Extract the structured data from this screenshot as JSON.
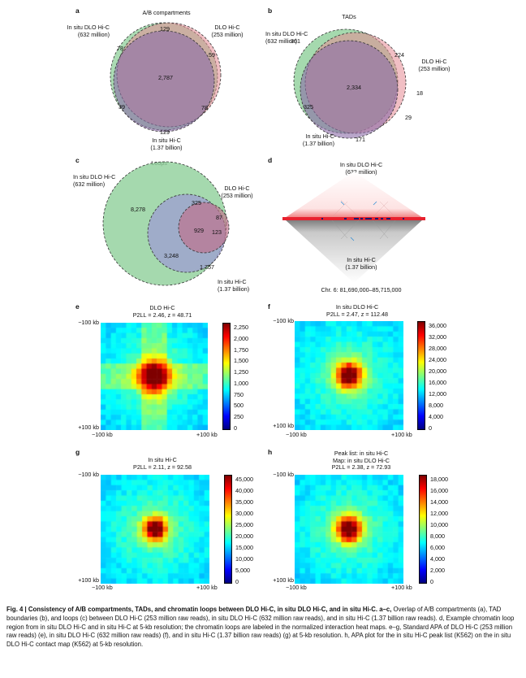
{
  "panels": {
    "a": {
      "letter": "a",
      "title": "A/B compartments",
      "set_left": [
        "In situ DLO Hi-C",
        "(632 million)"
      ],
      "set_right": [
        "DLO Hi-C",
        "(253 million)"
      ],
      "set_bottom": [
        "In situ Hi-C",
        "(1.37 billion)"
      ],
      "counts": {
        "top": "129",
        "left": "78",
        "right": "59",
        "center": "2,787",
        "lower_left": "39",
        "lower_right": "78",
        "bottom": "129"
      }
    },
    "b": {
      "letter": "b",
      "title": "TADs",
      "set_left": [
        "In situ DLO Hi-C",
        "(632 million)"
      ],
      "set_right": [
        "DLO Hi-C",
        "(253 million)"
      ],
      "set_bottom": [
        "In situ Hi-C",
        "(1.37 billion)"
      ],
      "counts": {
        "left": "361",
        "upper_right": "224",
        "center": "2,334",
        "right": "18",
        "lower_left": "325",
        "lower_right": "29",
        "bottom": "171"
      }
    },
    "c": {
      "letter": "c",
      "title": "Loops",
      "set_left": [
        "In situ DLO Hi-C",
        "(632 million)"
      ],
      "set_right": [
        "DLO Hi-C",
        "(253 million)"
      ],
      "set_bottom": [
        "In situ Hi-C",
        "(1.37 billion)"
      ],
      "counts": {
        "left": "8,278",
        "top_right": "325",
        "tiny": "87",
        "center": "929",
        "right": "123",
        "lower_center": "3,248",
        "lower_right": "1,757"
      }
    },
    "d": {
      "letter": "d",
      "top_label": [
        "In situ DLO Hi-C",
        "(632 million)"
      ],
      "bottom_label": [
        "In situ Hi-C",
        "(1.37 billion)"
      ],
      "region": "Chr. 6: 81,690,000–85,715,000"
    },
    "e": {
      "letter": "e",
      "title": [
        "DLO Hi-C",
        "P2LL = 2.46, z = 48.71"
      ],
      "tl": "−100 kb",
      "bl": "+100 kb",
      "xl": "−100 kb",
      "xr": "+100 kb",
      "ticks": [
        "2,250",
        "2,000",
        "1,750",
        "1,500",
        "1,250",
        "1,000",
        "750",
        "500",
        "250",
        "0"
      ],
      "peak": 0.62,
      "spread": 8,
      "cross": true
    },
    "f": {
      "letter": "f",
      "title": [
        "In situ DLO Hi-C",
        "P2LL = 2.47, z = 112.48"
      ],
      "tl": "−100 kb",
      "bl": "+100 kb",
      "xl": "−100 kb",
      "xr": "+100 kb",
      "ticks": [
        "36,000",
        "32,000",
        "28,000",
        "24,000",
        "20,000",
        "16,000",
        "12,000",
        "8,000",
        "4,000",
        "0"
      ],
      "peak": 0.55,
      "spread": 6,
      "cross": false
    },
    "g": {
      "letter": "g",
      "title": [
        "In situ Hi-C",
        "P2LL = 2.11, z = 92.58"
      ],
      "tl": "−100 kb",
      "bl": "+100 kb",
      "xl": "−100 kb",
      "xr": "+100 kb",
      "ticks": [
        "45,000",
        "40,000",
        "35,000",
        "30,000",
        "25,000",
        "20,000",
        "15,000",
        "10,000",
        "5,000",
        "0"
      ],
      "peak": 0.5,
      "spread": 5,
      "cross": false
    },
    "h": {
      "letter": "h",
      "title": [
        "Peak list: in situ Hi-C",
        "Map: in situ DLO Hi-C",
        "P2LL = 2.38, z = 72.93"
      ],
      "tl": "−100 kb",
      "bl": "+100 kb",
      "xl": "−100 kb",
      "xr": "+100 kb",
      "ticks": [
        "18,000",
        "16,000",
        "14,000",
        "12,000",
        "10,000",
        "8,000",
        "6,000",
        "4,000",
        "2,000",
        "0"
      ],
      "peak": 0.55,
      "spread": 6,
      "cross": false
    }
  },
  "caption": {
    "label": "Fig. 4 | Consistency of A/B compartments, TADs, and chromatin loops between DLO Hi-C, in situ DLO Hi-C, and in situ Hi-C. a–c,",
    "body": "Overlap of A/B compartments (a), TAD boundaries (b), and loops (c) between DLO Hi-C (253 million raw reads), in situ DLO Hi-C (632 million raw reads), and in situ Hi-C (1.37 billion raw reads). d, Example chromatin loop region from in situ DLO Hi-C and in situ Hi-C at 5-kb resolution; the chromatin loops are labeled in the normalized interaction heat maps. e–g, Standard APA of DLO Hi-C (253 million raw reads) (e), in situ DLO Hi-C (632 million raw reads) (f), and in situ Hi-C (1.37 billion raw reads) (g) at 5-kb resolution. h, APA plot for the in situ Hi-C peak list (K562) on the in situ DLO Hi-C contact map (K562) at 5-kb resolution."
  },
  "colors": {
    "green": "#8fcf9a",
    "red": "#e58a94",
    "blue": "#9d9cd2",
    "purple": "#8a6aa6"
  }
}
